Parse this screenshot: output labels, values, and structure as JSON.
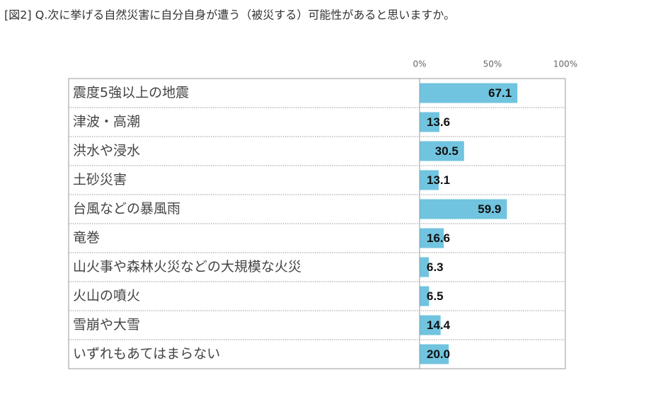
{
  "chart_data": {
    "type": "bar",
    "orientation": "horizontal",
    "title": "[図2] Q.次に挙げる自然災害に自分自身が遭う（被災する）可能性があると思いますか。",
    "categories": [
      "震度5強以上の地震",
      "津波・高潮",
      "洪水や浸水",
      "土砂災害",
      "台風などの暴風雨",
      "竜巻",
      "山火事や森林火災などの大規模な火災",
      "火山の噴火",
      "雪崩や大雪",
      "いずれもあてはまらない"
    ],
    "values": [
      67.1,
      13.6,
      30.5,
      13.1,
      59.9,
      16.6,
      6.3,
      6.5,
      14.4,
      20.0
    ],
    "value_labels": [
      "67.1",
      "13.6",
      "30.5",
      "13.1",
      "59.9",
      "16.6",
      "6.3",
      "6.5",
      "14.4",
      "20.0"
    ],
    "color": "#70c4df",
    "xlim": [
      0,
      100
    ],
    "xticks": [
      {
        "value": 0,
        "label": "0%"
      },
      {
        "value": 50,
        "label": "50%"
      },
      {
        "value": 100,
        "label": "100%"
      }
    ]
  }
}
